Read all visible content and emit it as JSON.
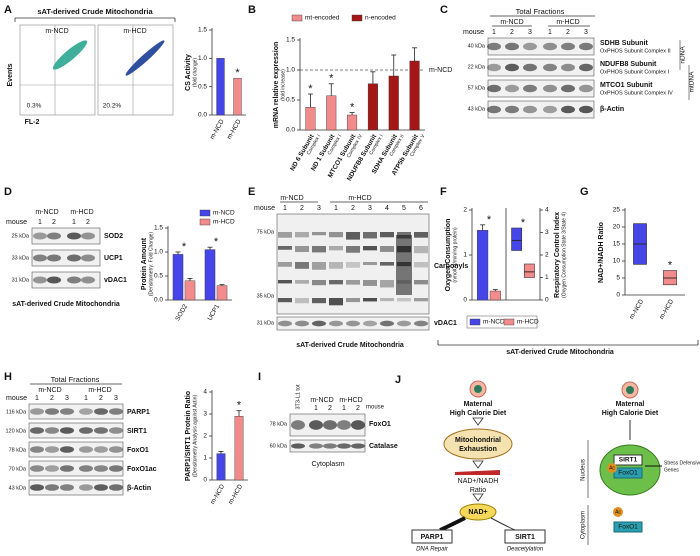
{
  "chart_data": [
    {
      "type": "bar",
      "y_label": "CS Activity",
      "y_sublabel": "(fold change)",
      "categories": [
        "m-NCD",
        "m-HCD"
      ],
      "values": [
        1,
        0.65
      ],
      "colors": [
        "#4646e8",
        "#f28b8b"
      ],
      "ylim": [
        0,
        1.5
      ],
      "yticks": [
        {
          "value": 0,
          "label": "0.0"
        },
        {
          "value": 0.5,
          "label": "0.5"
        },
        {
          "value": 1,
          "label": "1.0"
        },
        {
          "value": 1.5,
          "label": "1.5"
        }
      ],
      "annotations": [
        {
          "text": "*",
          "category": 1
        }
      ]
    },
    {
      "type": "bar",
      "y_label": "mRNA relative expression",
      "y_sublabel": "(fold increase)",
      "categories": [
        "ND 6 Subunit",
        "ND 1 Subunit",
        "MTCO1 Subunit",
        "NDUFB8 Subunit",
        "SDHA Subunit",
        "ATP5b Subunit"
      ],
      "category_sublabels": [
        "Complex I",
        "Complex I",
        "Complex IV",
        "Complex I",
        "Complex II",
        "Complex V"
      ],
      "series": [
        {
          "name": "mt-encoded",
          "color": "#f28b8b",
          "values": [
            0.38,
            0.57,
            0.25,
            null,
            null,
            null
          ],
          "errors": [
            0.22,
            0.2,
            0.04,
            null,
            null,
            null
          ]
        },
        {
          "name": "n-encoded",
          "color": "#a31717",
          "values": [
            null,
            null,
            null,
            0.77,
            0.9,
            1.15
          ],
          "errors": [
            null,
            null,
            null,
            0.2,
            0.35,
            0.22
          ]
        }
      ],
      "ylim": [
        0,
        1.5
      ],
      "yticks": [
        {
          "value": 0,
          "label": "0.0"
        },
        {
          "value": 0.5,
          "label": "0.5"
        },
        {
          "value": 1,
          "label": "1.0"
        },
        {
          "value": 1.5,
          "label": "1.5"
        }
      ],
      "reference": {
        "value": 1,
        "label": "m-NCD"
      },
      "legend": "top",
      "annotations": [
        {
          "text": "*",
          "category": 0
        },
        {
          "text": "*",
          "category": 1
        },
        {
          "text": "*",
          "category": 2
        }
      ]
    },
    {
      "type": "bar",
      "y_label": "Protein Amount",
      "y_sublabel": "(Densitometry: Fold Change)",
      "categories": [
        "SOD2",
        "UCP1"
      ],
      "series": [
        {
          "name": "m-NCD",
          "color": "#4646e8",
          "values": [
            0.95,
            1.05
          ],
          "errors": [
            0.05,
            0.05
          ]
        },
        {
          "name": "m-HCD",
          "color": "#f28b8b",
          "values": [
            0.4,
            0.3
          ],
          "errors": [
            0.05,
            0.02
          ]
        }
      ],
      "ylim": [
        0,
        1.5
      ],
      "yticks": [
        {
          "value": 0,
          "label": "0.0"
        },
        {
          "value": 0.5,
          "label": "0.5"
        },
        {
          "value": 1,
          "label": "1.0"
        },
        {
          "value": 1.5,
          "label": "1.5"
        }
      ],
      "legend": "top-right",
      "annotations": [
        {
          "text": "*",
          "category": 0
        },
        {
          "text": "*",
          "category": 1
        }
      ]
    },
    {
      "type": "bar",
      "y_label": "Oxygen Consumption",
      "y_sublabel": "(nmolO2/min/mg protein)",
      "y2_label": "Respiratory Control Index",
      "y2_sublabel": "(Oxygen Consumption State 3/State 4)",
      "categories": [
        null,
        null
      ],
      "category_axes": [
        "y",
        "y2"
      ],
      "series": [
        {
          "name": "m-NCD",
          "color": "#4646e8",
          "values": [
            1.55,
            2.65
          ],
          "errors": [
            0.12,
            null
          ],
          "low": [
            null,
            2.2
          ],
          "high": [
            null,
            3.2
          ]
        },
        {
          "name": "m-HCD",
          "color": "#f28b8b",
          "values": [
            0.2,
            1.25
          ],
          "errors": [
            0.03,
            null
          ],
          "low": [
            null,
            1
          ],
          "high": [
            null,
            1.6
          ]
        }
      ],
      "ylim": [
        0,
        2
      ],
      "yticks": [
        0,
        1,
        2
      ],
      "y2lim": [
        0,
        4
      ],
      "y2ticks": [
        0,
        1,
        2,
        3,
        4
      ],
      "legend": "bottom",
      "annotations": [
        {
          "text": "*",
          "category": 0
        },
        {
          "text": "*",
          "category": 1
        }
      ]
    },
    {
      "type": "box",
      "y_label": "NAD+/NADH Ratio",
      "categories": [
        "m-NCD",
        "m-HCD"
      ],
      "values": [
        15,
        5
      ],
      "low": [
        9,
        3
      ],
      "high": [
        21,
        7.2
      ],
      "colors": [
        "#4646e8",
        "#f28b8b"
      ],
      "ylim": [
        0,
        25
      ],
      "yticks": [
        0,
        5,
        10,
        15,
        20,
        25
      ],
      "annotations": [
        {
          "text": "*",
          "category": 1
        }
      ]
    },
    {
      "type": "bar",
      "y_label": "PARP1/SIRT1 Protein Ratio",
      "y_sublabel": "(Densitometry Analysis against Actin)",
      "categories": [
        "m-NCD",
        "m-HCD"
      ],
      "values": [
        1.2,
        2.9
      ],
      "errors": [
        0.1,
        0.25
      ],
      "colors": [
        "#4646e8",
        "#f28b8b"
      ],
      "ylim": [
        0,
        4
      ],
      "yticks": [
        0,
        1,
        2,
        3,
        4
      ],
      "annotations": [
        {
          "text": "*",
          "category": 1
        }
      ]
    }
  ],
  "panels": {
    "letters": [
      "A",
      "B",
      "C",
      "D",
      "E",
      "F",
      "G",
      "H",
      "I",
      "J"
    ],
    "a": {
      "title": "sAT-derived Crude Mitochondria",
      "flow_labels": [
        "m-NCD",
        "m-HCD"
      ],
      "percents": [
        "0.3%",
        "20.2%"
      ],
      "y_axis": "Events",
      "x_axis": "FL-2"
    },
    "c": {
      "header": "Total  Fractions",
      "groups": [
        "m-NCD",
        "m-HCD"
      ],
      "mouse": "mouse",
      "lanes": [
        "1",
        "2",
        "3",
        "1",
        "2",
        "3"
      ],
      "markers": [
        "40 kDa",
        "22 kDa",
        "57 kDa",
        "43 kDa"
      ],
      "bands": [
        {
          "name": "SDHB Subunit",
          "sub": "OxPHOS Subunit Complex II"
        },
        {
          "name": "NDUFB8 Subunit",
          "sub": "OxPHOS Subunit Complex I"
        },
        {
          "name": "MTCO1 Subunit",
          "sub": "OxPHOS Subunit Complex IV"
        },
        {
          "name": "β-Actin"
        }
      ],
      "side": [
        "nDNA",
        "mtDNA"
      ]
    },
    "d": {
      "groups": [
        "m-NCD",
        "m-HCD"
      ],
      "mouse": "mouse",
      "lanes": [
        "1",
        "2",
        "1",
        "2"
      ],
      "markers": [
        "25 kDa",
        "33 kDa",
        "31 kDa"
      ],
      "bands": [
        "SOD2",
        "UCP1",
        "vDAC1"
      ],
      "caption": "sAT-derived Crude Mitochondria"
    },
    "e": {
      "groups": [
        "m-NCD",
        "m-HCD"
      ],
      "mouse": "mouse",
      "lanes": [
        "1",
        "2",
        "3",
        "1",
        "2",
        "3",
        "4",
        "5",
        "6"
      ],
      "markers": [
        "75 kDa",
        "35 kDa",
        "31 kDa"
      ],
      "bands": [
        "Carbonyls",
        "vDAC1"
      ],
      "caption": "sAT-derived Crude Mitochondria"
    },
    "f": {
      "caption": "sAT-derived Crude Mitochondria"
    },
    "h": {
      "header": "Total  Fractions",
      "groups": [
        "m-NCD",
        "m-HCD"
      ],
      "mouse": "mouse",
      "lanes": [
        "1",
        "2",
        "3",
        "1",
        "2",
        "3"
      ],
      "markers": [
        "116 kDa",
        "120 kDa",
        "78 kDa",
        "70 kDa",
        "43 kDa"
      ],
      "bands": [
        "PARP1",
        "SIRT1",
        "FoxO1",
        "FoxO1ac",
        "β-Actin"
      ]
    },
    "i": {
      "lane0": "3T3-L1 tot",
      "groups": [
        "m-NCD",
        "m-HCD"
      ],
      "mouse": "mouse",
      "lanes": [
        "1",
        "2",
        "1",
        "2"
      ],
      "markers": [
        "78 kDa",
        "60 kDa"
      ],
      "bands": [
        "FoxO1",
        "Catalase"
      ],
      "caption": "Cytoplasm"
    },
    "j": {
      "left_title": [
        "Maternal",
        "High Calorie Diet"
      ],
      "mito": [
        "Mitochondrial",
        "Exhaustion"
      ],
      "ratio": [
        "NAD+/NADH",
        "Ratio"
      ],
      "nad": "NAD+",
      "parp": "PARP1",
      "parp_sub": "DNA Repair",
      "sirt": "SIRT1",
      "sirt_sub": "Deacetylation",
      "right_title": [
        "Maternal",
        "High Calorie Diet"
      ],
      "nucleus": "Nucleus",
      "cytoplasm": "Cytoplasm",
      "sirt1": "SIRT1",
      "foxo": "FoxO1",
      "foxo2": "FoxO1",
      "ac": "Ac",
      "ac2": "Ac",
      "genes": [
        "Stress Defensive",
        "Genes"
      ]
    }
  }
}
